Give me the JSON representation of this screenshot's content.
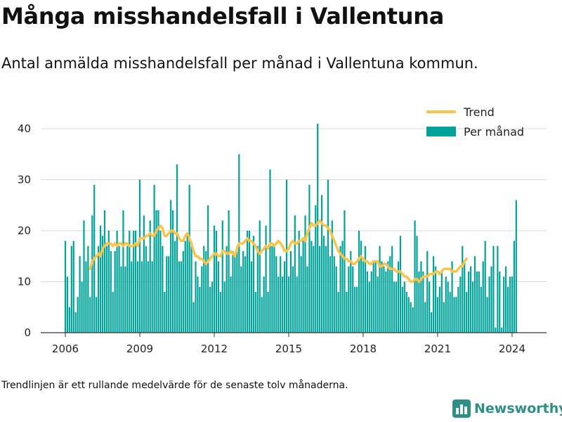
{
  "title": "Många misshandelsfall i Vallentuna",
  "subtitle": "Antal anmälda misshandelsfall per månad i Vallentuna kommun.",
  "footnote": "Trendlinjen är ett rullande medelvärde för de senaste tolv månaderna.",
  "brand": "Newsworthy",
  "colors": {
    "bars": "#00a39a",
    "trend": "#f8c44a",
    "grid": "#d9d9d9",
    "brand": "#2e8f86"
  },
  "chart_data": {
    "type": "bar",
    "x_axis": {
      "start": "2006-01",
      "ticks": [
        2006,
        2009,
        2012,
        2015,
        2018,
        2021,
        2024
      ],
      "range": [
        "2005-10",
        "2025-03"
      ]
    },
    "ylim": [
      0,
      42
    ],
    "yticks": [
      0,
      10,
      20,
      30,
      40
    ],
    "grid": true,
    "legend": {
      "position": "top-right",
      "entries": [
        "Trend",
        "Per månad"
      ]
    },
    "series": [
      {
        "name": "Per månad",
        "kind": "bar",
        "values": [
          18,
          11,
          5,
          17,
          18,
          4,
          7,
          15,
          10,
          22,
          14,
          17,
          7,
          23,
          29,
          7,
          17,
          21,
          19,
          24,
          17,
          20,
          16,
          8,
          16,
          20,
          17,
          13,
          24,
          13,
          17,
          20,
          14,
          20,
          20,
          14,
          30,
          14,
          23,
          17,
          14,
          22,
          14,
          29,
          24,
          24,
          20,
          17,
          8,
          15,
          15,
          26,
          24,
          18,
          33,
          14,
          14,
          16,
          18,
          19,
          29,
          17,
          6,
          14,
          11,
          9,
          13,
          17,
          16,
          25,
          9,
          10,
          21,
          20,
          14,
          8,
          22,
          10,
          17,
          24,
          11,
          16,
          15,
          17,
          35,
          13,
          16,
          15,
          20,
          20,
          14,
          19,
          8,
          17,
          22,
          7,
          11,
          21,
          8,
          32,
          17,
          17,
          15,
          11,
          15,
          11,
          14,
          30,
          11,
          16,
          13,
          23,
          11,
          20,
          15,
          18,
          23,
          13,
          29,
          18,
          17,
          25,
          41,
          17,
          27,
          19,
          17,
          30,
          15,
          22,
          15,
          13,
          8,
          17,
          18,
          24,
          8,
          13,
          16,
          13,
          9,
          9,
          20,
          18,
          14,
          17,
          12,
          10,
          12,
          14,
          14,
          11,
          17,
          14,
          13,
          12,
          14,
          15,
          17,
          10,
          10,
          14,
          19,
          9,
          10,
          8,
          7,
          6,
          5,
          22,
          19,
          12,
          14,
          12,
          6,
          16,
          10,
          4,
          15,
          13,
          7,
          9,
          12,
          6,
          11,
          10,
          8,
          14,
          7,
          7,
          9,
          11,
          17,
          14,
          8,
          12,
          13,
          10,
          15,
          12,
          12,
          9,
          14,
          18,
          7,
          11,
          13,
          17,
          1,
          17,
          12,
          1,
          11,
          13,
          9,
          11,
          11,
          18,
          26
        ]
      },
      {
        "name": "Trend",
        "kind": "line",
        "start_index": 12,
        "values": [
          12.5,
          14,
          14.5,
          15,
          15.5,
          15,
          16.5,
          17,
          17.5,
          17.5,
          17.5,
          17,
          17.5,
          17,
          17.5,
          17.5,
          17,
          17.5,
          17.5,
          17,
          17,
          17,
          17.5,
          17,
          18.5,
          18.5,
          18.5,
          19,
          19,
          19.5,
          19,
          19,
          20,
          20.5,
          21,
          20.5,
          19,
          19,
          19.5,
          20,
          20,
          19.5,
          19.5,
          18.5,
          18,
          18,
          19,
          19.5,
          18.5,
          17.5,
          16,
          15,
          15,
          14.5,
          14.5,
          14,
          13.5,
          14,
          14.5,
          15,
          15.5,
          15.5,
          15,
          15,
          16,
          16,
          15.5,
          15.5,
          16,
          15.5,
          15,
          16.5,
          17.5,
          17.5,
          17.5,
          18,
          18.5,
          18,
          18,
          17.5,
          17,
          16,
          15.5,
          16,
          16.5,
          17,
          16.5,
          17.5,
          17.5,
          17,
          17.5,
          18,
          17.5,
          17,
          16,
          16,
          16.5,
          17.5,
          18,
          17.5,
          17.5,
          18,
          18,
          18.5,
          18,
          19.5,
          20.5,
          21.5,
          21,
          21,
          21.5,
          22,
          21.5,
          21,
          21,
          20.5,
          20,
          19,
          18,
          17,
          16,
          15.5,
          15,
          14.5,
          14.5,
          14,
          14,
          13.5,
          13.5,
          14,
          14.5,
          15,
          14.5,
          14,
          14,
          13.5,
          13.5,
          14,
          14,
          14,
          13,
          13,
          13.5,
          13.5,
          13,
          12.5,
          12.5,
          12.5,
          12,
          12,
          12,
          11.5,
          11,
          11,
          10.5,
          10,
          10,
          10.5,
          10.5,
          10,
          10.5,
          11,
          11,
          11,
          11.5,
          11.5,
          11.5,
          12,
          12,
          11.5,
          12,
          12.5,
          12.5,
          12.5,
          12.5,
          12,
          12,
          12,
          12.5,
          13,
          13,
          14,
          14.5
        ]
      }
    ]
  }
}
